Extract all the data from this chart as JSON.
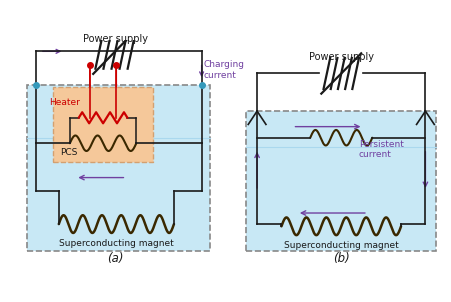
{
  "title_a": "(a)",
  "title_b": "(b)",
  "ps_label": "Power supply",
  "sc_magnet_label": "Superconducting magnet",
  "pcs_label": "PCS",
  "heater_label": "Heater",
  "charging_label": "Charging\ncurrent",
  "persistent_label": "Persistent\ncurrent",
  "colors": {
    "black": "#1a1a1a",
    "purple": "#7040a0",
    "red": "#cc0000",
    "light_blue": "#c8e8f5",
    "light_orange": "#f5c89a",
    "coil_dark": "#3a2800",
    "dot_blue": "#3399bb",
    "gray_dash": "#888888"
  },
  "bg": "#ffffff"
}
